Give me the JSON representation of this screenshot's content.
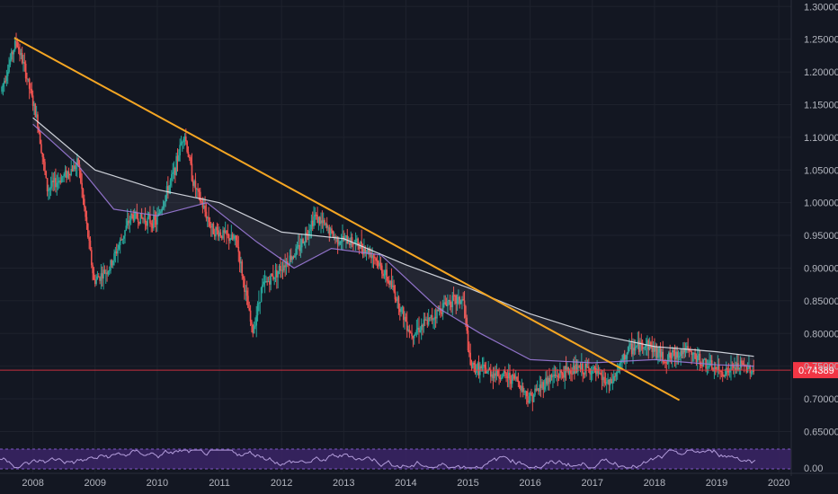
{
  "chart_data": {
    "type": "candlestick",
    "title": "",
    "xlabel": "",
    "ylabel": "",
    "x_ticks": [
      "2008",
      "2009",
      "2010",
      "2011",
      "2012",
      "2013",
      "2014",
      "2015",
      "2016",
      "2017",
      "2018",
      "2019",
      "2020"
    ],
    "y_ticks": [
      "1.30000",
      "1.25000",
      "1.20000",
      "1.15000",
      "1.10000",
      "1.05000",
      "1.00000",
      "0.95000",
      "0.90000",
      "0.85000",
      "0.80000",
      "0.75000",
      "0.70000",
      "0.65000"
    ],
    "ylim": [
      0.63,
      1.31
    ],
    "xlim": [
      2007.47,
      2020.2
    ],
    "current_price": {
      "label": "0.74389",
      "value": 0.74389,
      "color": "#f23645"
    },
    "trendline": {
      "from": [
        2007.7,
        1.252
      ],
      "to": [
        2018.4,
        0.698
      ],
      "color": "#f5a623"
    },
    "series": [
      {
        "type": "line",
        "color": "#e0e3eb",
        "points": [
          [
            2008.0,
            1.13
          ],
          [
            2009.0,
            1.05
          ],
          [
            2010.0,
            1.02
          ],
          [
            2011.0,
            1.0
          ],
          [
            2012.0,
            0.955
          ],
          [
            2013.0,
            0.945
          ],
          [
            2014.0,
            0.905
          ],
          [
            2015.0,
            0.87
          ],
          [
            2016.0,
            0.83
          ],
          [
            2017.0,
            0.8
          ],
          [
            2018.0,
            0.78
          ],
          [
            2019.0,
            0.772
          ],
          [
            2019.6,
            0.765
          ]
        ]
      },
      {
        "type": "line",
        "color": "#9b7ad8",
        "points": [
          [
            2008.0,
            1.12
          ],
          [
            2008.7,
            1.06
          ],
          [
            2009.3,
            0.99
          ],
          [
            2010.0,
            0.98
          ],
          [
            2010.8,
            1.0
          ],
          [
            2011.6,
            0.94
          ],
          [
            2012.2,
            0.9
          ],
          [
            2012.8,
            0.93
          ],
          [
            2013.6,
            0.92
          ],
          [
            2014.5,
            0.84
          ],
          [
            2015.2,
            0.8
          ],
          [
            2016.0,
            0.76
          ],
          [
            2017.0,
            0.755
          ],
          [
            2018.0,
            0.76
          ],
          [
            2019.0,
            0.752
          ],
          [
            2019.6,
            0.75
          ]
        ]
      }
    ],
    "candles_summary": {
      "description": "",
      "anchors": [
        [
          2007.5,
          1.17
        ],
        [
          2007.75,
          1.248
        ],
        [
          2007.9,
          1.2
        ],
        [
          2008.1,
          1.12
        ],
        [
          2008.25,
          1.02
        ],
        [
          2008.5,
          1.04
        ],
        [
          2008.75,
          1.06
        ],
        [
          2009.0,
          0.88
        ],
        [
          2009.25,
          0.9
        ],
        [
          2009.6,
          0.98
        ],
        [
          2010.0,
          0.97
        ],
        [
          2010.3,
          1.05
        ],
        [
          2010.45,
          1.11
        ],
        [
          2010.6,
          1.03
        ],
        [
          2010.9,
          0.96
        ],
        [
          2011.3,
          0.94
        ],
        [
          2011.55,
          0.8
        ],
        [
          2011.7,
          0.87
        ],
        [
          2012.0,
          0.9
        ],
        [
          2012.3,
          0.93
        ],
        [
          2012.55,
          0.98
        ],
        [
          2012.9,
          0.945
        ],
        [
          2013.2,
          0.94
        ],
        [
          2013.5,
          0.92
        ],
        [
          2013.8,
          0.87
        ],
        [
          2014.1,
          0.8
        ],
        [
          2014.4,
          0.82
        ],
        [
          2014.7,
          0.85
        ],
        [
          2014.95,
          0.85
        ],
        [
          2015.05,
          0.75
        ],
        [
          2015.4,
          0.74
        ],
        [
          2015.8,
          0.73
        ],
        [
          2016.0,
          0.7
        ],
        [
          2016.3,
          0.73
        ],
        [
          2016.7,
          0.745
        ],
        [
          2017.0,
          0.745
        ],
        [
          2017.3,
          0.72
        ],
        [
          2017.6,
          0.775
        ],
        [
          2017.9,
          0.785
        ],
        [
          2018.2,
          0.76
        ],
        [
          2018.5,
          0.775
        ],
        [
          2018.8,
          0.755
        ],
        [
          2019.1,
          0.74
        ],
        [
          2019.4,
          0.75
        ],
        [
          2019.6,
          0.745
        ]
      ]
    },
    "oscillator": {
      "ylim": [
        0,
        100
      ],
      "y_tick": "0.00",
      "band_color": "#3b2566",
      "line_color": "#b39ddb"
    }
  }
}
